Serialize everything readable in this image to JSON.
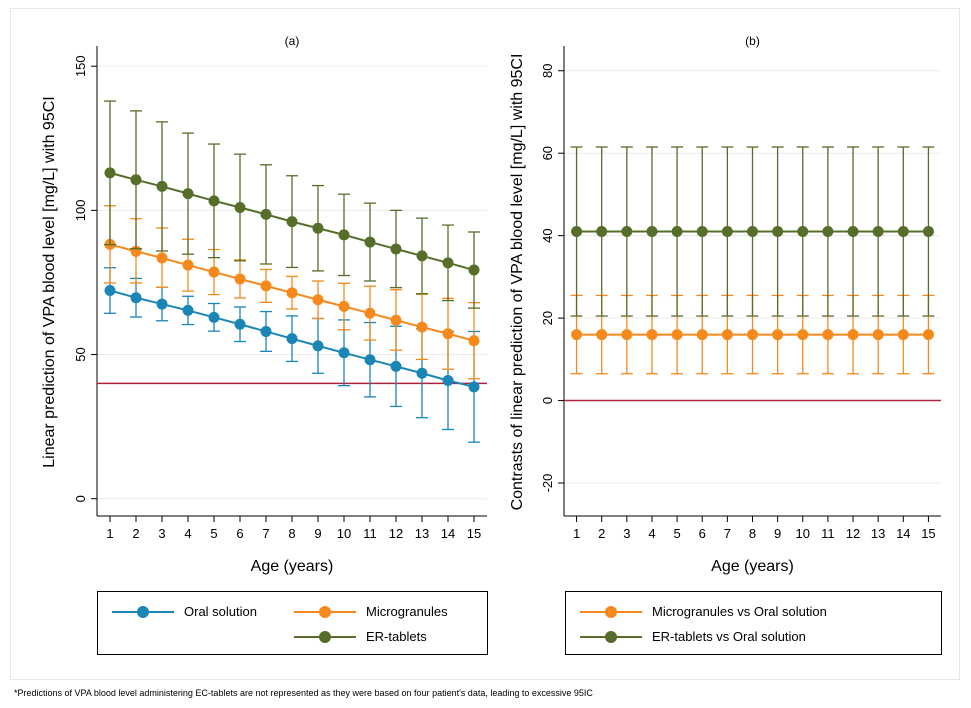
{
  "colors": {
    "oral_solution": "#1a86b6",
    "microgranules": "#f5891c",
    "er_tablets": "#566e2a",
    "reference_line": "#b0213f"
  },
  "chart_data": [
    {
      "type": "line",
      "title": "(a)",
      "xlabel": "Age (years)",
      "ylabel": "Linear prediction of VPA blood level [mg/L] with 95CI",
      "xlim": [
        0.5,
        15.5
      ],
      "ylim": [
        -6,
        157
      ],
      "x_ticks": [
        1,
        2,
        3,
        4,
        5,
        6,
        7,
        8,
        9,
        10,
        11,
        12,
        13,
        14,
        15
      ],
      "y_ticks": [
        0,
        50,
        100,
        150
      ],
      "reference_line": 40,
      "grid": "horizontal",
      "legend": {
        "position": "bottom"
      },
      "series": [
        {
          "name": "Oral solution",
          "color": "#1a86b6",
          "x": [
            1,
            2,
            3,
            4,
            5,
            6,
            7,
            8,
            9,
            10,
            11,
            12,
            13,
            14,
            15
          ],
          "values": [
            72.2,
            69.7,
            67.5,
            65.3,
            62.9,
            60.5,
            58.0,
            55.5,
            53.0,
            50.6,
            48.2,
            45.9,
            43.5,
            41.0,
            38.8
          ],
          "lower": [
            64.3,
            63.0,
            61.7,
            60.4,
            58.1,
            54.5,
            51.1,
            47.6,
            43.5,
            39.2,
            35.3,
            32.0,
            28.1,
            24.0,
            19.6
          ],
          "upper": [
            80.1,
            76.4,
            73.3,
            70.2,
            67.7,
            66.5,
            64.9,
            63.4,
            62.5,
            62.0,
            61.1,
            59.8,
            58.9,
            58.0,
            58.0
          ]
        },
        {
          "name": "Microgranules",
          "color": "#f5891c",
          "x": [
            1,
            2,
            3,
            4,
            5,
            6,
            7,
            8,
            9,
            10,
            11,
            12,
            13,
            14,
            15
          ],
          "values": [
            88.2,
            85.8,
            83.5,
            81.0,
            78.6,
            76.2,
            73.8,
            71.4,
            69.0,
            66.7,
            64.3,
            61.9,
            59.5,
            57.2,
            54.8
          ],
          "lower": [
            74.8,
            74.8,
            73.3,
            72.0,
            70.8,
            69.6,
            68.1,
            65.8,
            62.5,
            58.6,
            55.0,
            51.5,
            48.3,
            44.9,
            41.6
          ],
          "upper": [
            101.6,
            97.1,
            93.9,
            90.0,
            86.4,
            82.8,
            79.5,
            77.1,
            75.5,
            74.7,
            73.7,
            72.5,
            70.9,
            69.5,
            68.0
          ]
        },
        {
          "name": "ER-tablets",
          "color": "#566e2a",
          "x": [
            1,
            2,
            3,
            4,
            5,
            6,
            7,
            8,
            9,
            10,
            11,
            12,
            13,
            14,
            15
          ],
          "values": [
            113.0,
            110.6,
            108.3,
            105.8,
            103.3,
            101.0,
            98.6,
            96.1,
            93.8,
            91.5,
            89.0,
            86.6,
            84.2,
            81.8,
            79.3
          ],
          "lower": [
            88.1,
            86.7,
            85.9,
            84.8,
            83.6,
            82.5,
            81.4,
            80.2,
            79.0,
            77.4,
            75.5,
            73.2,
            71.1,
            68.7,
            66.1
          ],
          "upper": [
            137.9,
            134.5,
            130.7,
            126.8,
            123.0,
            119.5,
            115.8,
            112.0,
            108.6,
            105.6,
            102.5,
            100.0,
            97.3,
            94.9,
            92.5
          ]
        }
      ]
    },
    {
      "type": "line",
      "title": "(b)",
      "xlabel": "Age (years)",
      "ylabel": "Contrasts of linear prediction of VPA blood level [mg/L] with 95CI",
      "xlim": [
        0.5,
        15.5
      ],
      "ylim": [
        -28,
        86
      ],
      "x_ticks": [
        1,
        2,
        3,
        4,
        5,
        6,
        7,
        8,
        9,
        10,
        11,
        12,
        13,
        14,
        15
      ],
      "y_ticks": [
        -20,
        0,
        20,
        40,
        60,
        80
      ],
      "reference_line": 0,
      "grid": "horizontal",
      "legend": {
        "position": "bottom"
      },
      "series": [
        {
          "name": "Microgranules vs Oral solution",
          "color": "#f5891c",
          "x": [
            1,
            2,
            3,
            4,
            5,
            6,
            7,
            8,
            9,
            10,
            11,
            12,
            13,
            14,
            15
          ],
          "values": [
            16,
            16,
            16,
            16,
            16,
            16,
            16,
            16,
            16,
            16,
            16,
            16,
            16,
            16,
            16
          ],
          "lower": [
            6.5,
            6.5,
            6.5,
            6.5,
            6.5,
            6.5,
            6.5,
            6.5,
            6.5,
            6.5,
            6.5,
            6.5,
            6.5,
            6.5,
            6.5
          ],
          "upper": [
            25.5,
            25.5,
            25.5,
            25.5,
            25.5,
            25.5,
            25.5,
            25.5,
            25.5,
            25.5,
            25.5,
            25.5,
            25.5,
            25.5,
            25.5
          ]
        },
        {
          "name": "ER-tablets vs Oral solution",
          "color": "#566e2a",
          "x": [
            1,
            2,
            3,
            4,
            5,
            6,
            7,
            8,
            9,
            10,
            11,
            12,
            13,
            14,
            15
          ],
          "values": [
            41,
            41,
            41,
            41,
            41,
            41,
            41,
            41,
            41,
            41,
            41,
            41,
            41,
            41,
            41
          ],
          "lower": [
            20.5,
            20.5,
            20.5,
            20.5,
            20.5,
            20.5,
            20.5,
            20.5,
            20.5,
            20.5,
            20.5,
            20.5,
            20.5,
            20.5,
            20.5
          ],
          "upper": [
            61.5,
            61.5,
            61.5,
            61.5,
            61.5,
            61.5,
            61.5,
            61.5,
            61.5,
            61.5,
            61.5,
            61.5,
            61.5,
            61.5,
            61.5
          ]
        }
      ]
    }
  ],
  "footnote": "*Predictions of VPA blood level administering EC-tablets are not represented as they were based on four patient's data, leading to excessive 95IC"
}
